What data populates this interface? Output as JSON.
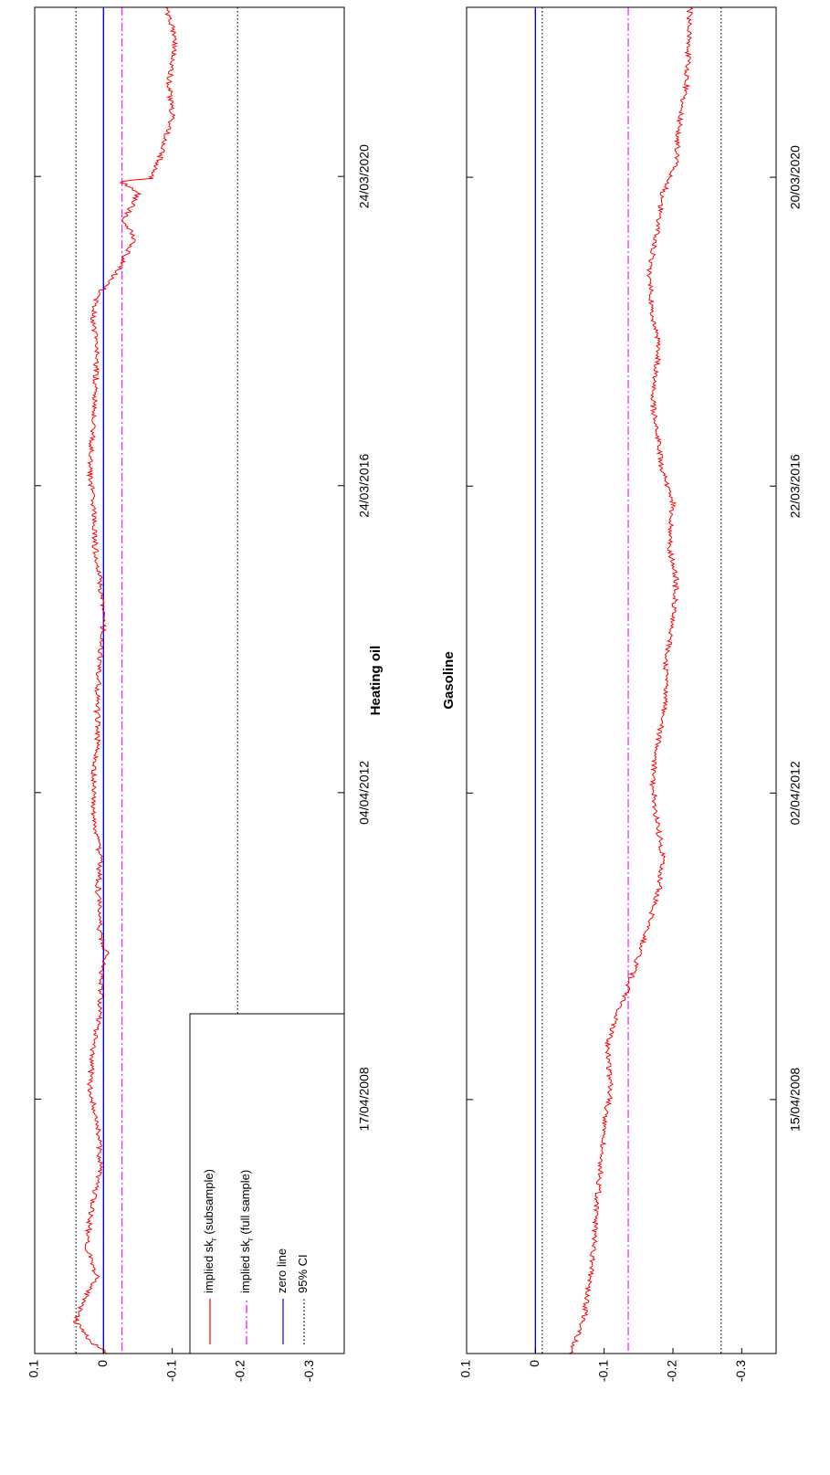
{
  "figure": {
    "orientation": "rotated-90-ccw",
    "legend": {
      "placement": "lower-left of first panel",
      "entries": [
        {
          "main": "implied sk",
          "sub": "r",
          "rest": " (subsample)",
          "color": "#ff0000",
          "style": "solid"
        },
        {
          "main": "implied sk",
          "sub": "r",
          "rest": " (full sample)",
          "color": "#ff00ff",
          "style": "dashdot"
        },
        {
          "main": "zero line",
          "sub": "",
          "rest": "",
          "color": "#0000ff",
          "style": "solid"
        },
        {
          "main": "95% CI",
          "sub": "",
          "rest": "",
          "color": "#000000",
          "style": "dotted"
        }
      ]
    }
  },
  "chart_data": [
    {
      "type": "line",
      "title": "Heating oil",
      "xlabel": "",
      "ylabel": "",
      "x_range": [
        "2005-01-01",
        "2022-06-01"
      ],
      "x_ticks": [
        "17/04/2008",
        "04/04/2012",
        "24/03/2016",
        "24/03/2020"
      ],
      "ylim": [
        -0.35,
        0.1
      ],
      "y_ticks": [
        "0.1",
        "0",
        "-0.1",
        "-0.2",
        "-0.3"
      ],
      "grid": false,
      "series": [
        {
          "name": "implied sk_r (subsample)",
          "color": "#ff0000",
          "style": "solid",
          "x": [
            "2005-01-01",
            "2005-03-01",
            "2005-06-01",
            "2005-09-01",
            "2006-01-01",
            "2006-06-01",
            "2007-01-01",
            "2007-06-01",
            "2008-01-01",
            "2008-06-01",
            "2009-01-01",
            "2009-06-01",
            "2010-01-01",
            "2010-03-01",
            "2010-06-01",
            "2011-01-01",
            "2011-06-01",
            "2012-01-01",
            "2012-06-01",
            "2013-01-01",
            "2013-06-01",
            "2014-01-01",
            "2014-06-01",
            "2015-01-01",
            "2015-06-01",
            "2016-01-01",
            "2016-06-01",
            "2017-01-01",
            "2017-06-01",
            "2018-01-01",
            "2018-06-01",
            "2018-09-01",
            "2019-01-01",
            "2019-06-01",
            "2019-09-01",
            "2020-01-01",
            "2020-03-01",
            "2020-03-15",
            "2020-06-01",
            "2021-01-01",
            "2021-06-01",
            "2022-01-01",
            "2022-06-01"
          ],
          "y": [
            -0.005,
            0.02,
            0.04,
            0.03,
            0.01,
            0.025,
            0.015,
            0.005,
            0.008,
            0.02,
            0.015,
            0.005,
            0.002,
            -0.005,
            0.005,
            0.008,
            0.005,
            0.015,
            0.015,
            0.008,
            0.01,
            0.005,
            0.0,
            0.005,
            0.012,
            0.015,
            0.02,
            0.015,
            0.012,
            0.01,
            0.015,
            0.01,
            -0.02,
            -0.045,
            -0.03,
            -0.05,
            -0.025,
            -0.07,
            -0.08,
            -0.1,
            -0.095,
            -0.105,
            -0.09
          ]
        },
        {
          "name": "implied sk_r (full sample)",
          "color": "#ff00ff",
          "style": "dashdot",
          "constant": -0.027
        },
        {
          "name": "zero line",
          "color": "#0000ff",
          "style": "solid",
          "constant": 0
        },
        {
          "name": "95% CI",
          "color": "#000000",
          "style": "dotted",
          "constants": [
            0.04,
            -0.195
          ]
        }
      ]
    },
    {
      "type": "line",
      "title": "Gasoline",
      "xlabel": "",
      "ylabel": "",
      "x_range": [
        "2005-01-01",
        "2022-06-01"
      ],
      "x_ticks": [
        "15/04/2008",
        "02/04/2012",
        "22/03/2016",
        "20/03/2020"
      ],
      "ylim": [
        -0.35,
        0.1
      ],
      "y_ticks": [
        "0.1",
        "0",
        "-0.1",
        "-0.2",
        "-0.3"
      ],
      "grid": false,
      "series": [
        {
          "name": "implied sk_r (subsample)",
          "color": "#ff0000",
          "style": "solid",
          "x": [
            "2005-01-01",
            "2005-06-01",
            "2006-01-01",
            "2006-06-01",
            "2007-01-01",
            "2007-06-01",
            "2008-01-01",
            "2008-06-01",
            "2009-01-01",
            "2009-06-01",
            "2009-10-01",
            "2010-01-01",
            "2010-06-01",
            "2011-01-01",
            "2011-06-01",
            "2012-01-01",
            "2012-06-01",
            "2013-01-01",
            "2013-06-01",
            "2014-01-01",
            "2014-06-01",
            "2015-01-01",
            "2015-06-01",
            "2016-01-01",
            "2016-06-01",
            "2017-01-01",
            "2017-06-01",
            "2018-01-01",
            "2018-06-01",
            "2019-01-01",
            "2019-06-01",
            "2020-01-01",
            "2020-06-01",
            "2021-01-01",
            "2021-06-01",
            "2022-06-01"
          ],
          "y": [
            -0.05,
            -0.07,
            -0.08,
            -0.085,
            -0.09,
            -0.095,
            -0.1,
            -0.11,
            -0.105,
            -0.12,
            -0.135,
            -0.145,
            -0.16,
            -0.18,
            -0.185,
            -0.175,
            -0.17,
            -0.18,
            -0.19,
            -0.19,
            -0.2,
            -0.205,
            -0.195,
            -0.2,
            -0.185,
            -0.175,
            -0.17,
            -0.18,
            -0.17,
            -0.165,
            -0.175,
            -0.185,
            -0.205,
            -0.21,
            -0.22,
            -0.225
          ]
        },
        {
          "name": "implied sk_r (full sample)",
          "color": "#ff00ff",
          "style": "dashdot",
          "constant": -0.135
        },
        {
          "name": "zero line",
          "color": "#0000ff",
          "style": "solid",
          "constant": 0
        },
        {
          "name": "95% CI",
          "color": "#000000",
          "style": "dotted",
          "constants": [
            -0.01,
            -0.27
          ]
        }
      ]
    }
  ]
}
